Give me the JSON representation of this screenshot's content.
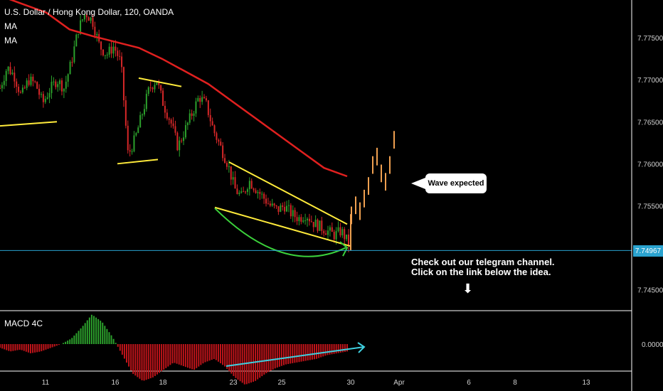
{
  "header": {
    "symbol": "U.S. Dollar / Hong Kong Dollar, 120, OANDA",
    "indicator_1": "MA",
    "indicator_2": "MA"
  },
  "price_axis": {
    "ticks": [
      "7.77500",
      "7.77000",
      "7.76500",
      "7.76000",
      "7.75500",
      "7.74500"
    ],
    "tick_values": [
      7.775,
      7.77,
      7.765,
      7.76,
      7.755,
      7.745
    ],
    "last_price_label": "7.74967",
    "last_price": 7.74967
  },
  "time_axis": {
    "labels": [
      "11",
      "16",
      "18",
      "23",
      "25",
      "30",
      "Apr",
      "6",
      "8",
      "13"
    ]
  },
  "annotations": {
    "callout": "Wave expected",
    "note_line1": "Check out our telegram channel.",
    "note_line2": "Click on the link below the idea."
  },
  "macd": {
    "label": "MACD 4C",
    "zero_label": "0.00000"
  },
  "colors": {
    "background": "#000000",
    "up_candle": "#2ca02c",
    "down_candle": "#d62728",
    "ma_line": "#e0201f",
    "trendline": "#ffeb3b",
    "arc": "#3bd13b",
    "projection": "#f0a050",
    "price_line": "#2aa3cf",
    "macd_arrow": "#3fd0e0"
  },
  "chart_data": {
    "type": "candlestick",
    "title": "U.S. Dollar / Hong Kong Dollar, 120, OANDA",
    "ylim": [
      7.7425,
      7.7795
    ],
    "y_ticks": [
      7.745,
      7.755,
      7.76,
      7.765,
      7.77,
      7.775
    ],
    "close_path": [
      7.769,
      7.7715,
      7.7705,
      7.768,
      7.77,
      7.7695,
      7.7672,
      7.7688,
      7.77,
      7.769,
      7.772,
      7.776,
      7.778,
      7.777,
      7.774,
      7.773,
      7.774,
      7.772,
      7.761,
      7.763,
      7.766,
      7.769,
      7.77,
      7.767,
      7.765,
      7.762,
      7.764,
      7.766,
      7.768,
      7.767,
      7.764,
      7.762,
      7.76,
      7.757,
      7.756,
      7.758,
      7.757,
      7.756,
      7.755,
      7.7545,
      7.755,
      7.754,
      7.7535,
      7.754,
      7.753,
      7.7525,
      7.752,
      7.7515,
      7.752,
      7.7505
    ],
    "ma_line": [
      7.78,
      7.779,
      7.778,
      7.776,
      7.7752,
      7.7745,
      7.7738,
      7.7725,
      7.771,
      7.7695,
      7.7675,
      7.7655,
      7.7635,
      7.7615,
      7.7595,
      7.7585
    ],
    "projection_ticks": [
      7.754,
      7.7552,
      7.7545,
      7.756,
      7.7575,
      7.76,
      7.761,
      7.759,
      7.758,
      7.76,
      7.763
    ],
    "support_price": 7.74967,
    "macd_hist": {
      "positive_peak_near": "14",
      "values": [
        -0.2,
        -0.4,
        -0.3,
        -0.5,
        -0.4,
        -0.2,
        0.0,
        0.3,
        0.9,
        1.6,
        1.2,
        0.4,
        -0.6,
        -1.6,
        -2.0,
        -1.8,
        -1.4,
        -1.0,
        -1.2,
        -1.4,
        -1.0,
        -0.8,
        -1.2,
        -1.8,
        -2.2,
        -2.0,
        -1.6,
        -1.3,
        -1.1,
        -1.0,
        -0.9,
        -0.8,
        -0.6,
        -0.5,
        -0.4
      ]
    }
  }
}
